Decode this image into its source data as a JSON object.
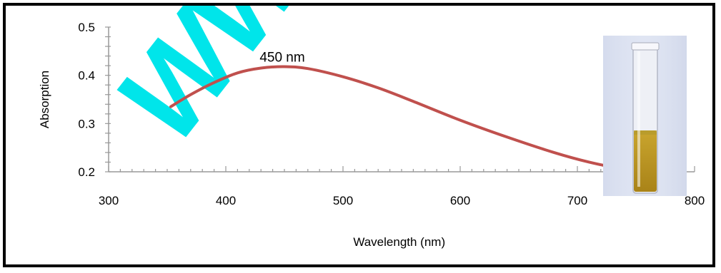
{
  "chart_data": {
    "type": "line",
    "title": "",
    "xlabel": "Wavelength (nm)",
    "ylabel": "Absorption",
    "xlim": [
      300,
      800
    ],
    "ylim": [
      0.2,
      0.5
    ],
    "x_ticks": [
      "300",
      "400",
      "500",
      "600",
      "700",
      "800"
    ],
    "y_ticks": [
      "0.2",
      "0.3",
      "0.4",
      "0.5"
    ],
    "grid": false,
    "series": [
      {
        "color": "#c0504d",
        "x": [
          353,
          370,
          390,
          410,
          430,
          450,
          470,
          500,
          530,
          560,
          600,
          640,
          680,
          710,
          740,
          755
        ],
        "y": [
          0.335,
          0.36,
          0.385,
          0.405,
          0.415,
          0.418,
          0.414,
          0.397,
          0.374,
          0.346,
          0.307,
          0.272,
          0.24,
          0.22,
          0.205,
          0.2
        ]
      }
    ],
    "annotations": [
      {
        "text": "450 nm",
        "x": 450,
        "y": 0.418
      }
    ],
    "watermark": "WWW"
  },
  "colors": {
    "watermark": "#00e5ea",
    "curve": "#c0504d"
  }
}
